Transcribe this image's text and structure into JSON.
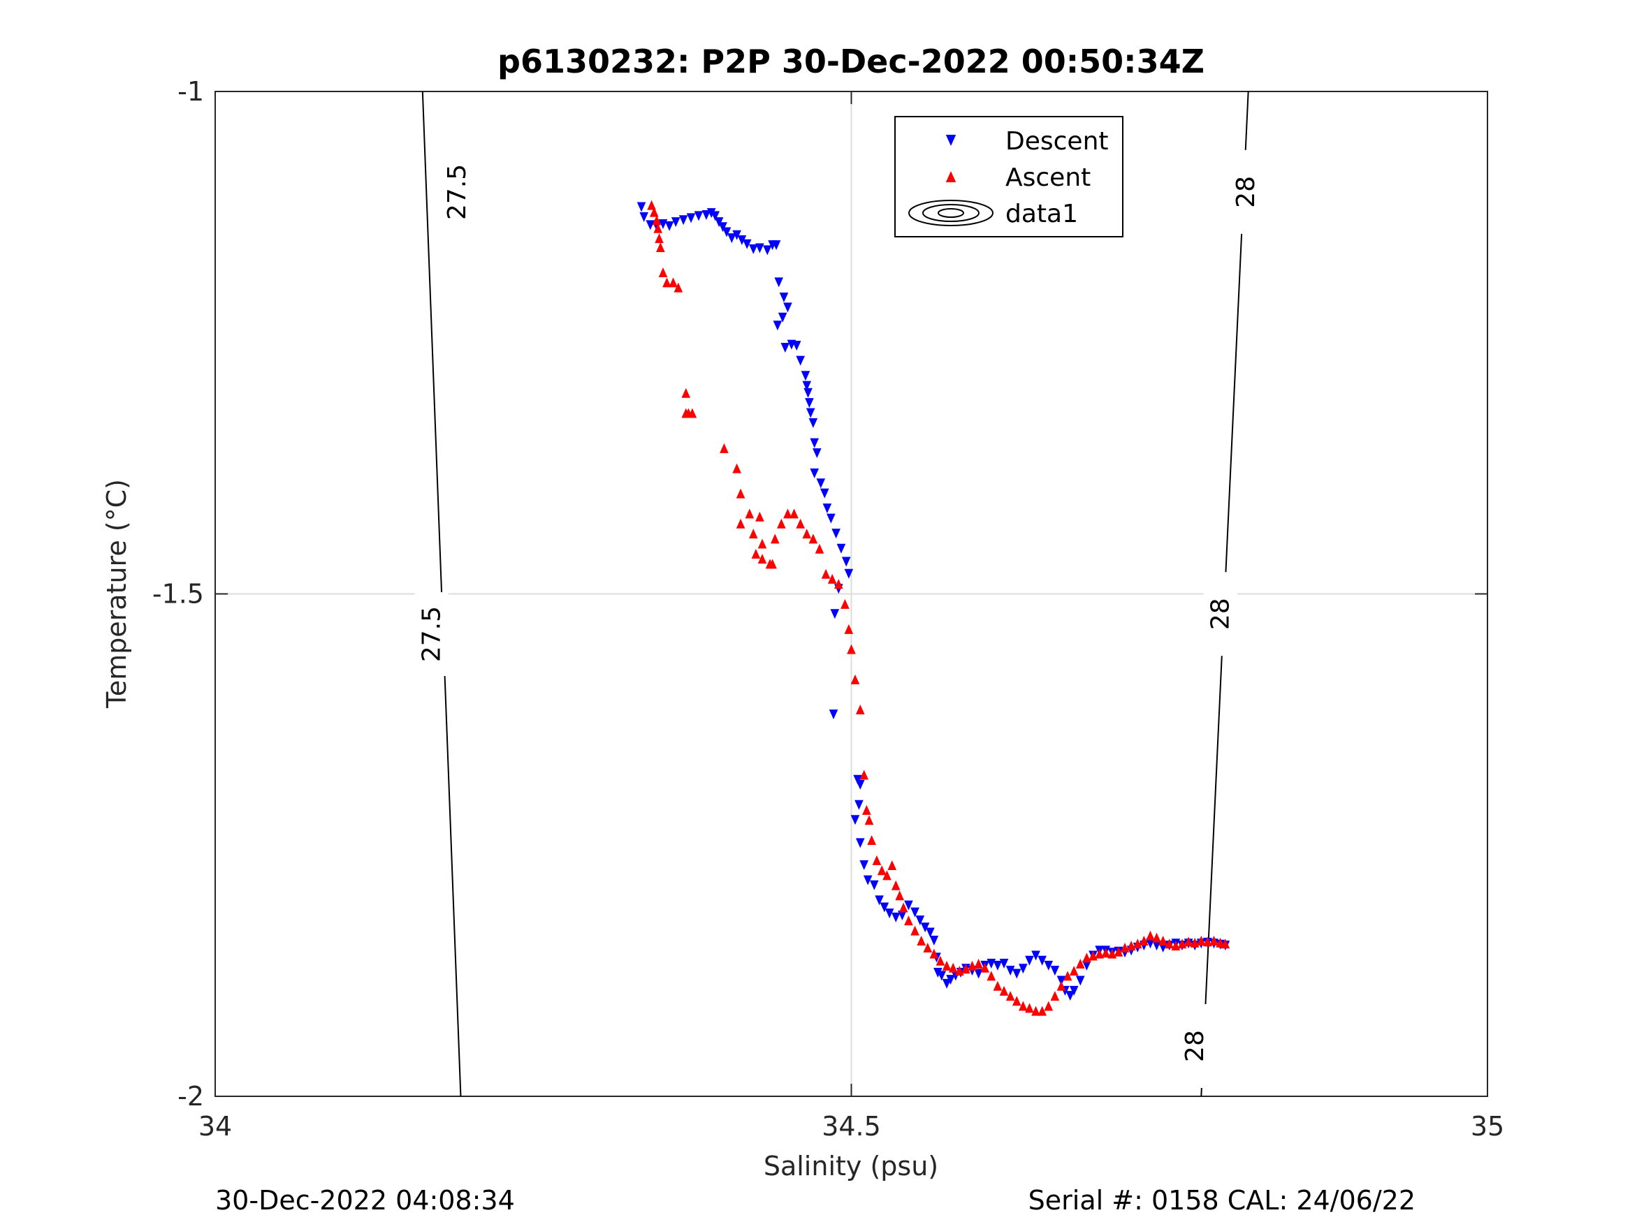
{
  "chart_data": {
    "type": "scatter",
    "title": "p6130232: P2P 30-Dec-2022 00:50:34Z",
    "xlabel": "Salinity (psu)",
    "ylabel": "Temperature (°C)",
    "xlim": [
      34,
      35
    ],
    "ylim": [
      -2,
      -1
    ],
    "xticks": [
      34,
      34.5,
      35
    ],
    "yticks": [
      -2,
      -1.5,
      -1
    ],
    "xtick_labels": [
      "34",
      "34.5",
      "35"
    ],
    "ytick_labels": [
      "-2",
      "-1.5",
      "-1"
    ],
    "grid": true,
    "legend_position": "top-right",
    "legend": [
      "Descent",
      "Ascent",
      "data1"
    ],
    "colors": {
      "descent": "#0000ff",
      "ascent": "#ff0000",
      "contour": "#000000",
      "grid": "#dcdcdc",
      "axis": "#262626"
    },
    "density_contours": [
      {
        "label": "27.5",
        "points": [
          [
            34.193,
            -2.0
          ],
          [
            34.163,
            -1.0
          ]
        ],
        "label_positions": [
          [
            34.19,
            -1.1
          ],
          [
            34.17,
            -1.54
          ]
        ]
      },
      {
        "label": "28",
        "points": [
          [
            34.775,
            -2.0
          ],
          [
            34.812,
            -1.0
          ]
        ],
        "label_positions": [
          [
            34.81,
            -1.1
          ],
          [
            34.79,
            -1.52
          ]
        ]
      },
      {
        "label": "28",
        "points": [],
        "label_positions": [
          [
            34.77,
            -1.95
          ]
        ]
      }
    ],
    "series": [
      {
        "name": "Descent",
        "marker": "triangle-down",
        "color": "#0000ff",
        "points": [
          [
            34.335,
            -1.115
          ],
          [
            34.337,
            -1.125
          ],
          [
            34.342,
            -1.133
          ],
          [
            34.347,
            -1.134
          ],
          [
            34.352,
            -1.132
          ],
          [
            34.357,
            -1.134
          ],
          [
            34.362,
            -1.13
          ],
          [
            34.368,
            -1.128
          ],
          [
            34.374,
            -1.126
          ],
          [
            34.38,
            -1.124
          ],
          [
            34.386,
            -1.123
          ],
          [
            34.39,
            -1.121
          ],
          [
            34.393,
            -1.124
          ],
          [
            34.396,
            -1.13
          ],
          [
            34.399,
            -1.135
          ],
          [
            34.402,
            -1.14
          ],
          [
            34.406,
            -1.146
          ],
          [
            34.41,
            -1.143
          ],
          [
            34.414,
            -1.148
          ],
          [
            34.418,
            -1.152
          ],
          [
            34.423,
            -1.157
          ],
          [
            34.428,
            -1.156
          ],
          [
            34.434,
            -1.158
          ],
          [
            34.438,
            -1.153
          ],
          [
            34.441,
            -1.153
          ],
          [
            34.443,
            -1.19
          ],
          [
            34.447,
            -1.205
          ],
          [
            34.45,
            -1.215
          ],
          [
            34.446,
            -1.225
          ],
          [
            34.442,
            -1.233
          ],
          [
            34.448,
            -1.255
          ],
          [
            34.453,
            -1.252
          ],
          [
            34.457,
            -1.253
          ],
          [
            34.46,
            -1.268
          ],
          [
            34.464,
            -1.283
          ],
          [
            34.465,
            -1.293
          ],
          [
            34.466,
            -1.3
          ],
          [
            34.467,
            -1.31
          ],
          [
            34.468,
            -1.32
          ],
          [
            34.47,
            -1.33
          ],
          [
            34.471,
            -1.35
          ],
          [
            34.473,
            -1.36
          ],
          [
            34.471,
            -1.38
          ],
          [
            34.476,
            -1.39
          ],
          [
            34.479,
            -1.4
          ],
          [
            34.481,
            -1.415
          ],
          [
            34.484,
            -1.425
          ],
          [
            34.488,
            -1.44
          ],
          [
            34.492,
            -1.455
          ],
          [
            34.496,
            -1.468
          ],
          [
            34.498,
            -1.48
          ],
          [
            34.487,
            -1.52
          ],
          [
            34.49,
            -1.495
          ],
          [
            34.486,
            -1.62
          ],
          [
            34.505,
            -1.685
          ],
          [
            34.507,
            -1.69
          ],
          [
            34.506,
            -1.71
          ],
          [
            34.503,
            -1.725
          ],
          [
            34.507,
            -1.748
          ],
          [
            34.51,
            -1.77
          ],
          [
            34.513,
            -1.785
          ],
          [
            34.518,
            -1.79
          ],
          [
            34.522,
            -1.805
          ],
          [
            34.526,
            -1.812
          ],
          [
            34.53,
            -1.818
          ],
          [
            34.535,
            -1.822
          ],
          [
            34.54,
            -1.82
          ],
          [
            34.545,
            -1.81
          ],
          [
            34.55,
            -1.817
          ],
          [
            34.554,
            -1.825
          ],
          [
            34.558,
            -1.832
          ],
          [
            34.562,
            -1.837
          ],
          [
            34.565,
            -1.845
          ],
          [
            34.567,
            -1.862
          ],
          [
            34.568,
            -1.877
          ],
          [
            34.571,
            -1.88
          ],
          [
            34.575,
            -1.888
          ],
          [
            34.578,
            -1.884
          ],
          [
            34.582,
            -1.88
          ],
          [
            34.586,
            -1.877
          ],
          [
            34.59,
            -1.873
          ],
          [
            34.595,
            -1.875
          ],
          [
            34.6,
            -1.878
          ],
          [
            34.605,
            -1.87
          ],
          [
            34.61,
            -1.868
          ],
          [
            34.615,
            -1.87
          ],
          [
            34.62,
            -1.868
          ],
          [
            34.625,
            -1.875
          ],
          [
            34.63,
            -1.878
          ],
          [
            34.635,
            -1.873
          ],
          [
            34.64,
            -1.865
          ],
          [
            34.645,
            -1.86
          ],
          [
            34.65,
            -1.865
          ],
          [
            34.655,
            -1.87
          ],
          [
            34.66,
            -1.875
          ],
          [
            34.665,
            -1.885
          ],
          [
            34.668,
            -1.895
          ],
          [
            34.672,
            -1.9
          ],
          [
            34.675,
            -1.895
          ],
          [
            34.68,
            -1.885
          ],
          [
            34.685,
            -1.87
          ],
          [
            34.69,
            -1.86
          ],
          [
            34.695,
            -1.855
          ],
          [
            34.7,
            -1.855
          ],
          [
            34.705,
            -1.857
          ],
          [
            34.71,
            -1.856
          ],
          [
            34.715,
            -1.857
          ],
          [
            34.72,
            -1.855
          ],
          [
            34.725,
            -1.852
          ],
          [
            34.73,
            -1.85
          ],
          [
            34.735,
            -1.848
          ],
          [
            34.74,
            -1.85
          ],
          [
            34.745,
            -1.852
          ],
          [
            34.75,
            -1.85
          ],
          [
            34.755,
            -1.848
          ],
          [
            34.76,
            -1.85
          ],
          [
            34.765,
            -1.848
          ],
          [
            34.77,
            -1.85
          ],
          [
            34.775,
            -1.848
          ],
          [
            34.78,
            -1.847
          ],
          [
            34.785,
            -1.848
          ],
          [
            34.79,
            -1.849
          ],
          [
            34.794,
            -1.85
          ]
        ]
      },
      {
        "name": "Ascent",
        "marker": "triangle-up",
        "color": "#ff0000",
        "points": [
          [
            34.343,
            -1.113
          ],
          [
            34.345,
            -1.12
          ],
          [
            34.347,
            -1.128
          ],
          [
            34.348,
            -1.136
          ],
          [
            34.349,
            -1.146
          ],
          [
            34.35,
            -1.155
          ],
          [
            34.352,
            -1.18
          ],
          [
            34.355,
            -1.19
          ],
          [
            34.36,
            -1.19
          ],
          [
            34.364,
            -1.195
          ],
          [
            34.37,
            -1.3
          ],
          [
            34.37,
            -1.32
          ],
          [
            34.372,
            -1.32
          ],
          [
            34.375,
            -1.32
          ],
          [
            34.42,
            -1.42
          ],
          [
            34.428,
            -1.423
          ],
          [
            34.423,
            -1.44
          ],
          [
            34.43,
            -1.45
          ],
          [
            34.4,
            -1.355
          ],
          [
            34.41,
            -1.375
          ],
          [
            34.413,
            -1.4
          ],
          [
            34.413,
            -1.43
          ],
          [
            34.425,
            -1.46
          ],
          [
            34.43,
            -1.465
          ],
          [
            34.436,
            -1.47
          ],
          [
            34.438,
            -1.47
          ],
          [
            34.44,
            -1.445
          ],
          [
            34.445,
            -1.43
          ],
          [
            34.45,
            -1.42
          ],
          [
            34.455,
            -1.42
          ],
          [
            34.46,
            -1.43
          ],
          [
            34.465,
            -1.44
          ],
          [
            34.47,
            -1.445
          ],
          [
            34.475,
            -1.455
          ],
          [
            34.48,
            -1.48
          ],
          [
            34.485,
            -1.485
          ],
          [
            34.49,
            -1.49
          ],
          [
            34.495,
            -1.51
          ],
          [
            34.498,
            -1.535
          ],
          [
            34.5,
            -1.555
          ],
          [
            34.503,
            -1.585
          ],
          [
            34.507,
            -1.615
          ],
          [
            34.51,
            -1.68
          ],
          [
            34.512,
            -1.715
          ],
          [
            34.514,
            -1.725
          ],
          [
            34.516,
            -1.745
          ],
          [
            34.52,
            -1.765
          ],
          [
            34.524,
            -1.775
          ],
          [
            34.528,
            -1.78
          ],
          [
            34.532,
            -1.77
          ],
          [
            34.535,
            -1.79
          ],
          [
            34.538,
            -1.8
          ],
          [
            34.541,
            -1.812
          ],
          [
            34.545,
            -1.825
          ],
          [
            34.55,
            -1.835
          ],
          [
            34.555,
            -1.845
          ],
          [
            34.56,
            -1.852
          ],
          [
            34.565,
            -1.858
          ],
          [
            34.57,
            -1.865
          ],
          [
            34.575,
            -1.87
          ],
          [
            34.58,
            -1.872
          ],
          [
            34.585,
            -1.875
          ],
          [
            34.59,
            -1.873
          ],
          [
            34.595,
            -1.87
          ],
          [
            34.6,
            -1.868
          ],
          [
            34.605,
            -1.872
          ],
          [
            34.61,
            -1.88
          ],
          [
            34.615,
            -1.89
          ],
          [
            34.62,
            -1.895
          ],
          [
            34.625,
            -1.9
          ],
          [
            34.63,
            -1.905
          ],
          [
            34.635,
            -1.91
          ],
          [
            34.64,
            -1.912
          ],
          [
            34.645,
            -1.915
          ],
          [
            34.65,
            -1.915
          ],
          [
            34.655,
            -1.91
          ],
          [
            34.66,
            -1.9
          ],
          [
            34.665,
            -1.89
          ],
          [
            34.67,
            -1.88
          ],
          [
            34.675,
            -1.875
          ],
          [
            34.68,
            -1.868
          ],
          [
            34.685,
            -1.862
          ],
          [
            34.69,
            -1.86
          ],
          [
            34.695,
            -1.858
          ],
          [
            34.7,
            -1.857
          ],
          [
            34.705,
            -1.858
          ],
          [
            34.71,
            -1.856
          ],
          [
            34.715,
            -1.852
          ],
          [
            34.72,
            -1.85
          ],
          [
            34.725,
            -1.848
          ],
          [
            34.73,
            -1.845
          ],
          [
            34.735,
            -1.84
          ],
          [
            34.74,
            -1.842
          ],
          [
            34.745,
            -1.845
          ],
          [
            34.75,
            -1.848
          ],
          [
            34.755,
            -1.85
          ],
          [
            34.76,
            -1.848
          ],
          [
            34.765,
            -1.846
          ],
          [
            34.77,
            -1.847
          ],
          [
            34.775,
            -1.845
          ],
          [
            34.78,
            -1.846
          ],
          [
            34.785,
            -1.845
          ],
          [
            34.79,
            -1.847
          ],
          [
            34.794,
            -1.848
          ]
        ]
      }
    ]
  },
  "footer": {
    "left": "30-Dec-2022 04:08:34",
    "right": "Serial #: 0158  CAL: 24/06/22"
  }
}
